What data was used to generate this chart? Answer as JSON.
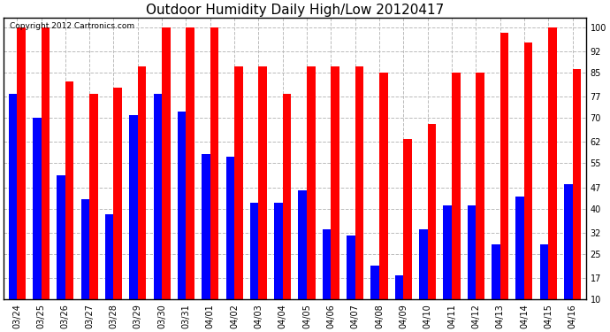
{
  "title": "Outdoor Humidity Daily High/Low 20120417",
  "copyright": "Copyright 2012 Cartronics.com",
  "dates": [
    "03/24",
    "03/25",
    "03/26",
    "03/27",
    "03/28",
    "03/29",
    "03/30",
    "03/31",
    "04/01",
    "04/02",
    "04/03",
    "04/04",
    "04/05",
    "04/06",
    "04/07",
    "04/08",
    "04/09",
    "04/10",
    "04/11",
    "04/12",
    "04/13",
    "04/14",
    "04/15",
    "04/16"
  ],
  "highs": [
    100,
    100,
    82,
    78,
    80,
    87,
    100,
    100,
    100,
    87,
    87,
    78,
    87,
    87,
    87,
    85,
    63,
    68,
    85,
    85,
    98,
    95,
    100,
    86
  ],
  "lows": [
    78,
    70,
    51,
    43,
    38,
    71,
    78,
    72,
    58,
    57,
    42,
    42,
    46,
    33,
    31,
    21,
    18,
    33,
    41,
    41,
    28,
    44,
    28,
    48
  ],
  "high_color": "#ff0000",
  "low_color": "#0000ff",
  "background_color": "#ffffff",
  "grid_color": "#bbbbbb",
  "yticks": [
    10,
    17,
    25,
    32,
    40,
    47,
    55,
    62,
    70,
    77,
    85,
    92,
    100
  ],
  "ylim": [
    10,
    103
  ],
  "ymin": 10,
  "title_fontsize": 11,
  "tick_fontsize": 7,
  "bar_width": 0.35
}
